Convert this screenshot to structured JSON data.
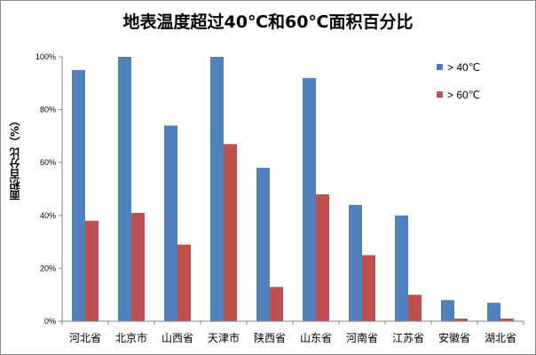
{
  "chart_data": {
    "type": "bar",
    "title": "地表温度超过40℃和60℃面积百分比",
    "ylabel": "面积百分比（%）",
    "xlabel": "",
    "ylim": [
      0,
      100
    ],
    "yticks": [
      "0%",
      "20%",
      "40%",
      "60%",
      "80%",
      "100%"
    ],
    "grid": false,
    "legend_position": "top-right",
    "categories": [
      "河北省",
      "北京市",
      "山西省",
      "天津市",
      "陕西省",
      "山东省",
      "河南省",
      "江苏省",
      "安徽省",
      "湖北省"
    ],
    "series": [
      {
        "name": "> 40℃",
        "color": "#4f81bd",
        "values": [
          95,
          100,
          74,
          100,
          58,
          92,
          44,
          40,
          8,
          7
        ]
      },
      {
        "name": "> 60℃",
        "color": "#c0504d",
        "values": [
          38,
          41,
          29,
          67,
          13,
          48,
          25,
          10,
          1,
          1
        ]
      }
    ]
  }
}
